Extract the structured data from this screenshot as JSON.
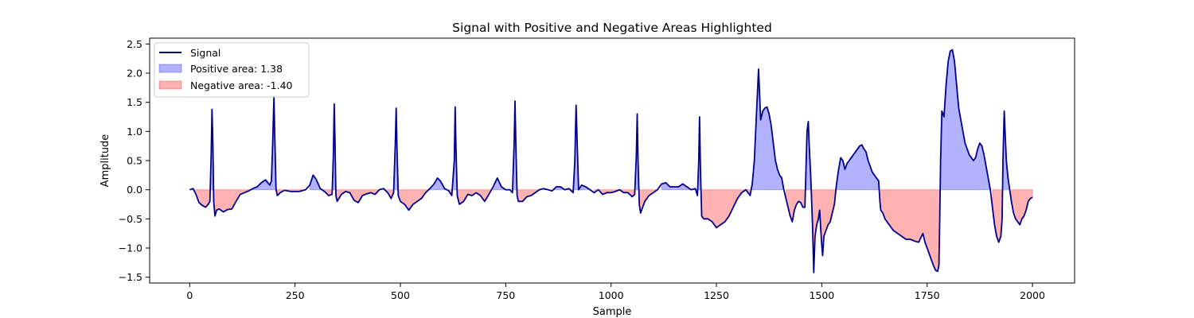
{
  "chart_data": {
    "type": "area",
    "title": "Signal with Positive and Negative Areas Highlighted",
    "xlabel": "Sample",
    "ylabel": "Amplitude",
    "xlim": [
      -95,
      2100
    ],
    "ylim": [
      -1.6,
      2.6
    ],
    "xticks": [
      0,
      250,
      500,
      750,
      1000,
      1250,
      1500,
      1750,
      2000
    ],
    "xtick_labels": [
      "0",
      "250",
      "500",
      "750",
      "1000",
      "1250",
      "1500",
      "1750",
      "2000"
    ],
    "yticks": [
      -1.5,
      -1.0,
      -0.5,
      0.0,
      0.5,
      1.0,
      1.5,
      2.0,
      2.5
    ],
    "ytick_labels": [
      "−1.5",
      "−1.0",
      "−0.5",
      "0.0",
      "0.5",
      "1.0",
      "1.5",
      "2.0",
      "2.5"
    ],
    "grid": false,
    "legend_position": "top-left",
    "legend": [
      {
        "label": "Signal",
        "kind": "line",
        "color": "#00008b"
      },
      {
        "label": "Positive area: 1.38",
        "kind": "patch",
        "color": "#0000ff"
      },
      {
        "label": "Negative area: -1.40",
        "kind": "patch",
        "color": "#ff0000"
      }
    ],
    "colors": {
      "line": "#00008b",
      "positive_fill": "#0000ff",
      "negative_fill": "#ff0000",
      "fill_opacity": 0.3
    },
    "series": [
      {
        "name": "Signal",
        "points": [
          [
            0,
            0.0
          ],
          [
            8,
            0.02
          ],
          [
            15,
            -0.08
          ],
          [
            22,
            -0.22
          ],
          [
            30,
            -0.27
          ],
          [
            38,
            -0.3
          ],
          [
            44,
            -0.25
          ],
          [
            48,
            -0.2
          ],
          [
            51,
            0.6
          ],
          [
            53,
            1.38
          ],
          [
            55,
            0.8
          ],
          [
            57,
            -0.2
          ],
          [
            60,
            -0.45
          ],
          [
            64,
            -0.35
          ],
          [
            70,
            -0.33
          ],
          [
            80,
            -0.38
          ],
          [
            90,
            -0.34
          ],
          [
            100,
            -0.33
          ],
          [
            110,
            -0.2
          ],
          [
            120,
            -0.08
          ],
          [
            130,
            -0.05
          ],
          [
            140,
            -0.02
          ],
          [
            150,
            0.02
          ],
          [
            160,
            0.05
          ],
          [
            170,
            0.12
          ],
          [
            180,
            0.17
          ],
          [
            190,
            0.08
          ],
          [
            194,
            0.15
          ],
          [
            197,
            0.8
          ],
          [
            200,
            1.6
          ],
          [
            202,
            0.9
          ],
          [
            205,
            0.0
          ],
          [
            208,
            -0.1
          ],
          [
            215,
            -0.05
          ],
          [
            225,
            -0.01
          ],
          [
            240,
            -0.03
          ],
          [
            260,
            -0.03
          ],
          [
            275,
            0.0
          ],
          [
            285,
            0.08
          ],
          [
            293,
            0.25
          ],
          [
            300,
            0.18
          ],
          [
            310,
            0.02
          ],
          [
            320,
            -0.03
          ],
          [
            330,
            -0.1
          ],
          [
            338,
            -0.08
          ],
          [
            341,
            0.6
          ],
          [
            343,
            1.47
          ],
          [
            345,
            0.8
          ],
          [
            347,
            -0.1
          ],
          [
            350,
            -0.2
          ],
          [
            360,
            -0.08
          ],
          [
            370,
            -0.03
          ],
          [
            380,
            -0.05
          ],
          [
            390,
            -0.18
          ],
          [
            400,
            -0.22
          ],
          [
            410,
            -0.1
          ],
          [
            420,
            -0.07
          ],
          [
            430,
            -0.05
          ],
          [
            440,
            -0.08
          ],
          [
            450,
            0.0
          ],
          [
            460,
            0.02
          ],
          [
            470,
            -0.05
          ],
          [
            478,
            -0.15
          ],
          [
            484,
            -0.05
          ],
          [
            488,
            0.8
          ],
          [
            490,
            1.4
          ],
          [
            492,
            0.7
          ],
          [
            495,
            -0.1
          ],
          [
            500,
            -0.2
          ],
          [
            510,
            -0.25
          ],
          [
            520,
            -0.35
          ],
          [
            530,
            -0.25
          ],
          [
            540,
            -0.2
          ],
          [
            550,
            -0.15
          ],
          [
            560,
            -0.05
          ],
          [
            570,
            0.02
          ],
          [
            580,
            0.1
          ],
          [
            588,
            0.2
          ],
          [
            595,
            0.15
          ],
          [
            605,
            0.02
          ],
          [
            615,
            -0.02
          ],
          [
            622,
            -0.1
          ],
          [
            628,
            0.5
          ],
          [
            630,
            1.42
          ],
          [
            632,
            0.7
          ],
          [
            635,
            -0.1
          ],
          [
            640,
            -0.25
          ],
          [
            650,
            -0.2
          ],
          [
            660,
            -0.08
          ],
          [
            670,
            -0.1
          ],
          [
            680,
            -0.05
          ],
          [
            690,
            -0.1
          ],
          [
            700,
            -0.2
          ],
          [
            710,
            -0.08
          ],
          [
            720,
            0.05
          ],
          [
            730,
            0.2
          ],
          [
            740,
            0.05
          ],
          [
            750,
            0.0
          ],
          [
            760,
            0.0
          ],
          [
            766,
            -0.05
          ],
          [
            770,
            0.8
          ],
          [
            772,
            1.52
          ],
          [
            774,
            0.8
          ],
          [
            777,
            -0.1
          ],
          [
            780,
            -0.2
          ],
          [
            790,
            -0.2
          ],
          [
            800,
            -0.12
          ],
          [
            810,
            -0.1
          ],
          [
            820,
            -0.05
          ],
          [
            830,
            0.0
          ],
          [
            840,
            0.02
          ],
          [
            850,
            0.0
          ],
          [
            860,
            -0.02
          ],
          [
            870,
            0.05
          ],
          [
            880,
            0.05
          ],
          [
            890,
            0.0
          ],
          [
            900,
            0.02
          ],
          [
            910,
            -0.05
          ],
          [
            914,
            0.5
          ],
          [
            917,
            1.45
          ],
          [
            920,
            0.7
          ],
          [
            923,
            0.0
          ],
          [
            930,
            0.08
          ],
          [
            940,
            0.05
          ],
          [
            950,
            0.0
          ],
          [
            960,
            -0.05
          ],
          [
            970,
            0.0
          ],
          [
            980,
            -0.08
          ],
          [
            990,
            -0.05
          ],
          [
            1000,
            -0.05
          ],
          [
            1010,
            -0.03
          ],
          [
            1020,
            0.0
          ],
          [
            1030,
            -0.05
          ],
          [
            1040,
            -0.05
          ],
          [
            1050,
            -0.12
          ],
          [
            1056,
            -0.08
          ],
          [
            1060,
            0.6
          ],
          [
            1062,
            1.3
          ],
          [
            1064,
            0.5
          ],
          [
            1067,
            -0.25
          ],
          [
            1070,
            -0.4
          ],
          [
            1080,
            -0.2
          ],
          [
            1090,
            -0.1
          ],
          [
            1100,
            -0.05
          ],
          [
            1110,
            0.0
          ],
          [
            1120,
            0.1
          ],
          [
            1130,
            0.12
          ],
          [
            1140,
            0.05
          ],
          [
            1150,
            0.05
          ],
          [
            1160,
            0.05
          ],
          [
            1170,
            0.1
          ],
          [
            1180,
            0.05
          ],
          [
            1190,
            0.0
          ],
          [
            1200,
            0.02
          ],
          [
            1205,
            -0.1
          ],
          [
            1208,
            0.5
          ],
          [
            1210,
            1.25
          ],
          [
            1212,
            0.4
          ],
          [
            1215,
            -0.45
          ],
          [
            1220,
            -0.5
          ],
          [
            1230,
            -0.5
          ],
          [
            1240,
            -0.55
          ],
          [
            1250,
            -0.65
          ],
          [
            1260,
            -0.6
          ],
          [
            1270,
            -0.55
          ],
          [
            1280,
            -0.45
          ],
          [
            1290,
            -0.3
          ],
          [
            1300,
            -0.15
          ],
          [
            1310,
            -0.05
          ],
          [
            1320,
            0.0
          ],
          [
            1325,
            -0.05
          ],
          [
            1330,
            -0.1
          ],
          [
            1335,
            0.1
          ],
          [
            1340,
            0.5
          ],
          [
            1345,
            1.3
          ],
          [
            1350,
            2.07
          ],
          [
            1355,
            1.2
          ],
          [
            1360,
            1.35
          ],
          [
            1365,
            1.4
          ],
          [
            1370,
            1.42
          ],
          [
            1375,
            1.3
          ],
          [
            1380,
            1.1
          ],
          [
            1385,
            0.8
          ],
          [
            1390,
            0.5
          ],
          [
            1395,
            0.35
          ],
          [
            1400,
            0.25
          ],
          [
            1405,
            0.2
          ],
          [
            1410,
            0.0
          ],
          [
            1415,
            -0.15
          ],
          [
            1420,
            -0.3
          ],
          [
            1425,
            -0.45
          ],
          [
            1430,
            -0.55
          ],
          [
            1435,
            -0.35
          ],
          [
            1440,
            -0.25
          ],
          [
            1445,
            -0.2
          ],
          [
            1450,
            -0.22
          ],
          [
            1455,
            -0.3
          ],
          [
            1460,
            -0.3
          ],
          [
            1465,
            1.0
          ],
          [
            1468,
            1.17
          ],
          [
            1470,
            0.8
          ],
          [
            1474,
            0.2
          ],
          [
            1478,
            -0.6
          ],
          [
            1481,
            -1.42
          ],
          [
            1484,
            -0.8
          ],
          [
            1488,
            -0.6
          ],
          [
            1492,
            -0.5
          ],
          [
            1495,
            -0.35
          ],
          [
            1499,
            -0.85
          ],
          [
            1502,
            -1.13
          ],
          [
            1505,
            -0.8
          ],
          [
            1510,
            -0.7
          ],
          [
            1515,
            -0.6
          ],
          [
            1520,
            -0.55
          ],
          [
            1530,
            -0.25
          ],
          [
            1535,
            0.1
          ],
          [
            1540,
            0.35
          ],
          [
            1545,
            0.55
          ],
          [
            1550,
            0.5
          ],
          [
            1555,
            0.35
          ],
          [
            1560,
            0.45
          ],
          [
            1565,
            0.5
          ],
          [
            1570,
            0.55
          ],
          [
            1575,
            0.6
          ],
          [
            1580,
            0.65
          ],
          [
            1585,
            0.7
          ],
          [
            1590,
            0.75
          ],
          [
            1595,
            0.77
          ],
          [
            1600,
            0.7
          ],
          [
            1605,
            0.65
          ],
          [
            1610,
            0.5
          ],
          [
            1615,
            0.4
          ],
          [
            1620,
            0.3
          ],
          [
            1625,
            0.25
          ],
          [
            1630,
            0.2
          ],
          [
            1635,
            0.15
          ],
          [
            1638,
            -0.2
          ],
          [
            1640,
            -0.35
          ],
          [
            1645,
            -0.4
          ],
          [
            1650,
            -0.5
          ],
          [
            1660,
            -0.6
          ],
          [
            1670,
            -0.7
          ],
          [
            1680,
            -0.75
          ],
          [
            1690,
            -0.8
          ],
          [
            1700,
            -0.85
          ],
          [
            1710,
            -0.85
          ],
          [
            1720,
            -0.88
          ],
          [
            1730,
            -0.9
          ],
          [
            1740,
            -0.75
          ],
          [
            1745,
            -0.9
          ],
          [
            1750,
            -1.0
          ],
          [
            1755,
            -1.1
          ],
          [
            1760,
            -1.2
          ],
          [
            1765,
            -1.3
          ],
          [
            1770,
            -1.38
          ],
          [
            1775,
            -1.4
          ],
          [
            1778,
            -1.3
          ],
          [
            1780,
            -0.5
          ],
          [
            1782,
            0.5
          ],
          [
            1785,
            1.35
          ],
          [
            1790,
            1.25
          ],
          [
            1795,
            1.8
          ],
          [
            1800,
            2.2
          ],
          [
            1805,
            2.38
          ],
          [
            1810,
            2.4
          ],
          [
            1815,
            2.2
          ],
          [
            1820,
            1.8
          ],
          [
            1825,
            1.4
          ],
          [
            1830,
            1.2
          ],
          [
            1835,
            1.0
          ],
          [
            1840,
            0.8
          ],
          [
            1845,
            0.7
          ],
          [
            1850,
            0.6
          ],
          [
            1855,
            0.55
          ],
          [
            1860,
            0.5
          ],
          [
            1865,
            0.55
          ],
          [
            1870,
            0.7
          ],
          [
            1875,
            0.8
          ],
          [
            1880,
            0.75
          ],
          [
            1885,
            0.6
          ],
          [
            1890,
            0.4
          ],
          [
            1895,
            0.2
          ],
          [
            1900,
            0.0
          ],
          [
            1905,
            -0.3
          ],
          [
            1910,
            -0.6
          ],
          [
            1915,
            -0.8
          ],
          [
            1920,
            -0.9
          ],
          [
            1925,
            -0.8
          ],
          [
            1928,
            -0.5
          ],
          [
            1930,
            0.5
          ],
          [
            1933,
            1.35
          ],
          [
            1935,
            1.0
          ],
          [
            1938,
            0.5
          ],
          [
            1942,
            0.2
          ],
          [
            1946,
            0.0
          ],
          [
            1950,
            -0.2
          ],
          [
            1955,
            -0.4
          ],
          [
            1960,
            -0.5
          ],
          [
            1965,
            -0.55
          ],
          [
            1970,
            -0.6
          ],
          [
            1975,
            -0.5
          ],
          [
            1980,
            -0.45
          ],
          [
            1985,
            -0.35
          ],
          [
            1990,
            -0.2
          ],
          [
            1995,
            -0.15
          ],
          [
            2000,
            -0.13
          ]
        ]
      }
    ]
  }
}
